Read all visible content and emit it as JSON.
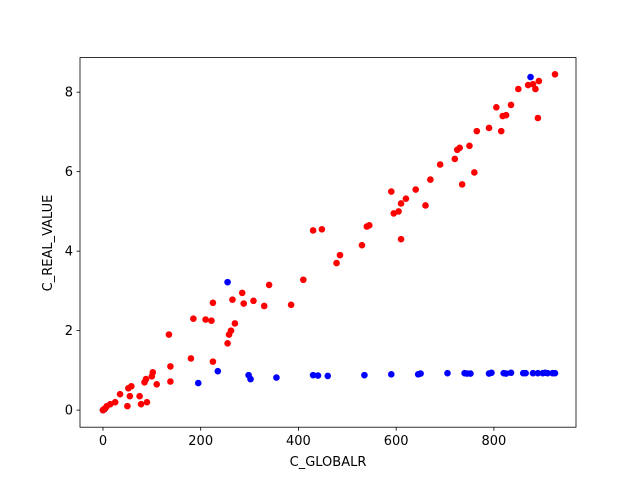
{
  "chart_data": {
    "type": "scatter",
    "xlabel": "C_GLOBALR",
    "ylabel": "C_REAL_VALUE",
    "xlim": [
      -47,
      968
    ],
    "ylim": [
      -0.43,
      8.87
    ],
    "xticks": [
      0,
      200,
      400,
      600,
      800
    ],
    "yticks": [
      0,
      2,
      4,
      6,
      8
    ],
    "grid": false,
    "series": [
      {
        "color": "#0000ff",
        "x": [
          0,
          3,
          195,
          235,
          255,
          298,
          302,
          355,
          430,
          440,
          460,
          535,
          590,
          645,
          650,
          705,
          740,
          745,
          752,
          790,
          795,
          820,
          825,
          835,
          860,
          865,
          875,
          880,
          890,
          900,
          905,
          910,
          920,
          925
        ],
        "values": [
          0,
          0.02,
          0.68,
          0.98,
          3.22,
          0.88,
          0.78,
          0.82,
          0.88,
          0.87,
          0.86,
          0.88,
          0.9,
          0.9,
          0.92,
          0.93,
          0.93,
          0.92,
          0.92,
          0.92,
          0.94,
          0.93,
          0.92,
          0.94,
          0.93,
          0.93,
          8.38,
          0.93,
          0.93,
          0.93,
          0.94,
          0.93,
          0.93,
          0.93
        ]
      },
      {
        "color": "#ff0000",
        "x": [
          0,
          2,
          5,
          8,
          1,
          15,
          25,
          35,
          50,
          52,
          58,
          55,
          75,
          78,
          85,
          90,
          88,
          100,
          102,
          110,
          135,
          138,
          138,
          180,
          185,
          210,
          222,
          225,
          225,
          255,
          258,
          262,
          265,
          270,
          285,
          288,
          308,
          330,
          340,
          385,
          410,
          430,
          448,
          478,
          485,
          530,
          540,
          545,
          590,
          595,
          605,
          610,
          610,
          620,
          640,
          660,
          670,
          690,
          720,
          725,
          730,
          735,
          750,
          760,
          765,
          790,
          805,
          815,
          818,
          825,
          835,
          850,
          870,
          880,
          885,
          890,
          892,
          925
        ],
        "values": [
          0,
          0.02,
          0.05,
          0.1,
          0.01,
          0.15,
          0.2,
          0.4,
          0.1,
          0.55,
          0.6,
          0.35,
          0.35,
          0.15,
          0.7,
          0.2,
          0.78,
          0.85,
          0.95,
          0.65,
          1.9,
          1.1,
          0.72,
          1.3,
          2.3,
          2.28,
          2.25,
          2.7,
          1.22,
          1.68,
          1.9,
          2.0,
          2.78,
          2.18,
          2.95,
          2.68,
          2.75,
          2.62,
          3.15,
          2.65,
          3.28,
          4.52,
          4.55,
          3.7,
          3.9,
          4.15,
          4.62,
          4.65,
          5.5,
          4.95,
          5.0,
          5.2,
          4.3,
          5.32,
          5.55,
          5.15,
          5.8,
          6.18,
          6.32,
          6.55,
          6.6,
          5.68,
          6.65,
          5.98,
          7.02,
          7.1,
          7.62,
          7.02,
          7.4,
          7.42,
          7.68,
          8.08,
          8.18,
          8.2,
          8.08,
          7.35,
          8.28,
          8.45
        ]
      }
    ]
  }
}
